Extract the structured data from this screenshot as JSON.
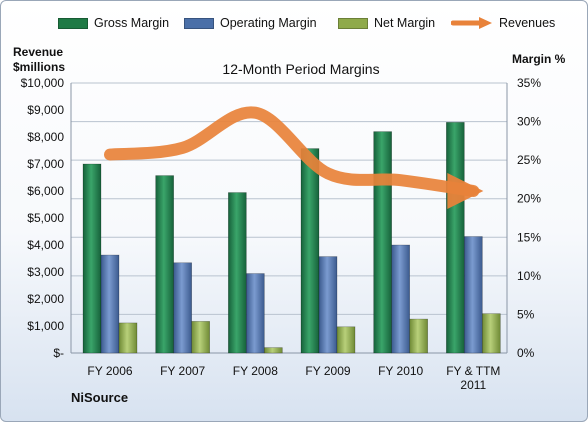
{
  "legend": {
    "gross": "Gross Margin",
    "operating": "Operating Margin",
    "net": "Net Margin",
    "revenues": "Revenues"
  },
  "axis_titles": {
    "left_line1": "Revenue",
    "left_line2": "$millions",
    "right": "Margin %"
  },
  "company": "NiSource",
  "colors": {
    "gross": "#1f7a45",
    "operating": "#4a6fa8",
    "net": "#8faa4a",
    "revenues": "#e8823a"
  },
  "chart_data": {
    "type": "bar",
    "title": "12-Month Period Margins",
    "categories": [
      [
        "FY 2006"
      ],
      [
        "FY 2007"
      ],
      [
        "FY 2008"
      ],
      [
        "FY 2009"
      ],
      [
        "FY 2010"
      ],
      [
        "FY & TTM",
        "2011"
      ]
    ],
    "series": [
      {
        "name": "Gross Margin",
        "axis": "right",
        "values": [
          24.5,
          23.0,
          20.8,
          26.5,
          28.7,
          29.9
        ]
      },
      {
        "name": "Operating Margin",
        "axis": "right",
        "values": [
          12.7,
          11.7,
          10.3,
          12.5,
          14.0,
          15.1
        ]
      },
      {
        "name": "Net Margin",
        "axis": "right",
        "values": [
          3.9,
          4.1,
          0.7,
          3.4,
          4.4,
          5.1
        ]
      },
      {
        "name": "Revenues",
        "type": "line",
        "axis": "left",
        "values": [
          7350,
          7600,
          8900,
          6650,
          6400,
          6000
        ]
      }
    ],
    "y_left": {
      "min": 0,
      "max": 10000,
      "ticks": [
        "$-",
        "$1,000",
        "$2,000",
        "$3,000",
        "$4,000",
        "$5,000",
        "$6,000",
        "$7,000",
        "$8,000",
        "$9,000",
        "$10,000"
      ]
    },
    "y_right": {
      "min": 0,
      "max": 35,
      "ticks": [
        "0%",
        "5%",
        "10%",
        "15%",
        "20%",
        "25%",
        "30%",
        "35%"
      ]
    },
    "grid": true,
    "legend_position": "top"
  }
}
